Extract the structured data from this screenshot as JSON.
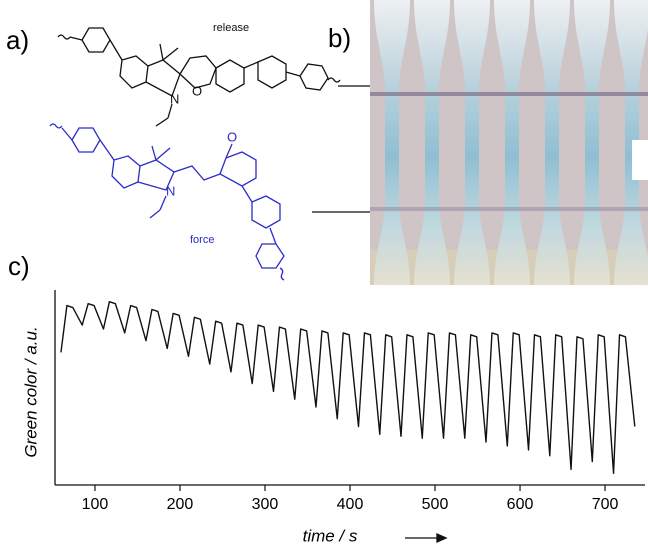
{
  "panels": {
    "a": {
      "label": "a)",
      "top_label": "release",
      "bottom_label": "force",
      "atoms": {
        "n_top": "N",
        "o_top": "O",
        "n_bottom": "N",
        "o_bottom": "O"
      }
    },
    "b": {
      "label": "b)"
    },
    "c": {
      "label": "c)"
    }
  },
  "chart_data": {
    "type": "line",
    "x_label": "time / s",
    "y_label": "Green color / a.u.",
    "color": "#111111",
    "x": [
      60,
      67,
      74,
      85,
      92,
      99,
      110,
      117,
      124,
      135,
      142,
      149,
      160,
      167,
      174,
      185,
      192,
      199,
      210,
      217,
      224,
      235,
      242,
      249,
      260,
      267,
      274,
      285,
      292,
      299,
      310,
      317,
      324,
      335,
      342,
      349,
      360,
      367,
      374,
      385,
      392,
      399,
      410,
      417,
      424,
      435,
      442,
      449,
      460,
      467,
      474,
      485,
      492,
      499,
      510,
      517,
      524,
      535,
      542,
      549,
      560,
      567,
      574,
      585,
      592,
      599,
      610,
      617,
      624,
      635,
      642,
      649,
      660,
      667,
      674,
      685,
      692,
      699,
      710,
      717,
      724,
      735
    ],
    "values": [
      68,
      92,
      91,
      82,
      93,
      92,
      80,
      94,
      93,
      78,
      92,
      91,
      74,
      90,
      89,
      70,
      88,
      87,
      66,
      86,
      85,
      62,
      84,
      83,
      58,
      83,
      82,
      52,
      82,
      81,
      48,
      81,
      80,
      44,
      80,
      79,
      40,
      79,
      78,
      34,
      78,
      77,
      30,
      78,
      77,
      26,
      77,
      76,
      25,
      77,
      76,
      24,
      78,
      77,
      24,
      78,
      77,
      24,
      77,
      76,
      22,
      78,
      77,
      20,
      78,
      77,
      18,
      77,
      76,
      15,
      77,
      76,
      8,
      76,
      75,
      12,
      77,
      76,
      6,
      77,
      76,
      30
    ],
    "xlim": [
      53,
      747
    ],
    "ylim": [
      0,
      100
    ],
    "xticks": [
      100,
      200,
      300,
      400,
      500,
      600,
      700
    ]
  }
}
